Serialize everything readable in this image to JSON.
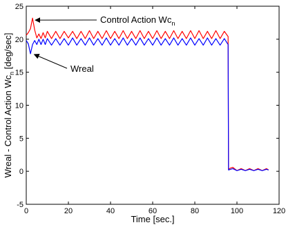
{
  "chart_data": {
    "type": "line",
    "xlabel": "Time [sec.]",
    "ylabel": "Wreal - Control Action Wc",
    "ylabel_sub": "n",
    "ylabel_unit": " [deg/sec]",
    "xlim": [
      0,
      120
    ],
    "ylim": [
      -5,
      25
    ],
    "xticks": [
      0,
      20,
      40,
      60,
      80,
      100,
      120
    ],
    "yticks": [
      -5,
      0,
      5,
      10,
      15,
      20,
      25
    ],
    "grid": false,
    "colors": {
      "control": "#ff0000",
      "real": "#0000ff"
    },
    "series": [
      {
        "key": "control",
        "name": "Control Action Wc",
        "name_sub": "n",
        "color": "#ff0000",
        "x": [
          0,
          1,
          2,
          3,
          4,
          5,
          6,
          7,
          8,
          9,
          10,
          12,
          14,
          16,
          18,
          20,
          22,
          24,
          26,
          28,
          30,
          32,
          34,
          36,
          38,
          40,
          42,
          44,
          46,
          48,
          50,
          52,
          54,
          56,
          58,
          60,
          62,
          64,
          66,
          68,
          70,
          72,
          74,
          76,
          78,
          80,
          82,
          84,
          86,
          88,
          90,
          92,
          94,
          95.8,
          96,
          97,
          98,
          100,
          102,
          104,
          106,
          108,
          110,
          112,
          114,
          115
        ],
        "y": [
          20.6,
          21,
          21.6,
          23.2,
          21.4,
          20.2,
          20.8,
          20.1,
          21,
          20.2,
          21.2,
          20.1,
          21.2,
          20.1,
          21.2,
          20.2,
          21.2,
          20.1,
          21.2,
          20.1,
          21.3,
          20.1,
          21.2,
          20.1,
          21.3,
          20.1,
          21.2,
          20.1,
          21.3,
          20.1,
          21.2,
          20.1,
          21.3,
          20.1,
          21.2,
          20.1,
          21.3,
          20.1,
          21.2,
          20.1,
          21.3,
          20.1,
          21.2,
          20.1,
          21.3,
          20.1,
          21.3,
          20.1,
          21.2,
          20.1,
          21.3,
          20.1,
          21.2,
          20.4,
          0.3,
          0.5,
          0.6,
          0.1,
          0.4,
          0.1,
          0.4,
          0.1,
          0.4,
          0.1,
          0.4,
          0.2
        ]
      },
      {
        "key": "real",
        "name": "Wreal",
        "color": "#0000ff",
        "x": [
          0,
          1,
          2,
          3,
          4,
          5,
          6,
          7,
          8,
          9,
          10,
          12,
          14,
          16,
          18,
          20,
          22,
          24,
          26,
          28,
          30,
          32,
          34,
          36,
          38,
          40,
          42,
          44,
          46,
          48,
          50,
          52,
          54,
          56,
          58,
          60,
          62,
          64,
          66,
          68,
          70,
          72,
          74,
          76,
          78,
          80,
          82,
          84,
          86,
          88,
          90,
          92,
          94,
          95.8,
          96,
          97,
          98,
          100,
          102,
          104,
          106,
          108,
          110,
          112,
          114,
          115
        ],
        "y": [
          19.8,
          19.3,
          17.8,
          19.2,
          19.8,
          19.2,
          20,
          19.2,
          20,
          19.2,
          20.1,
          19.1,
          20.1,
          19.1,
          20.1,
          19.1,
          20.2,
          19.1,
          20.1,
          19.1,
          20.2,
          19.1,
          20.1,
          19.1,
          20.2,
          19.1,
          20.1,
          19.1,
          20.2,
          19.1,
          20.1,
          19.1,
          20.2,
          19.1,
          20.1,
          19.1,
          20.2,
          19.1,
          20.1,
          19.1,
          20.2,
          19.1,
          20.1,
          19.1,
          20.2,
          19.1,
          20.1,
          19.1,
          20.2,
          19.1,
          20.1,
          19.1,
          20.1,
          19.2,
          0.2,
          0.3,
          0.4,
          0.1,
          0.3,
          0.1,
          0.3,
          0.1,
          0.3,
          0.1,
          0.3,
          0.2
        ]
      }
    ],
    "annotations": [
      {
        "series": "control",
        "text": "Control Action Wc",
        "sub": "n",
        "arrow_to": [
          3,
          23
        ]
      },
      {
        "series": "real",
        "text": "Wreal",
        "arrow_to": [
          2.5,
          17.8
        ]
      }
    ]
  }
}
